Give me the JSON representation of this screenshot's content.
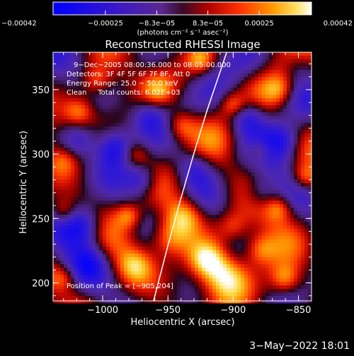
{
  "chart_data": {
    "type": "heatmap",
    "title": "Reconstructed RHESSI Image",
    "xlabel": "Heliocentric X (arcsec)",
    "ylabel": "Heliocentric Y (arcsec)",
    "xlim": [
      -1038,
      -840
    ],
    "ylim": [
      186,
      379
    ],
    "x_ticks": [
      {
        "value": -1000,
        "label": "−1000"
      },
      {
        "value": -950,
        "label": "−950"
      },
      {
        "value": -900,
        "label": "−900"
      },
      {
        "value": -850,
        "label": "−850"
      }
    ],
    "y_ticks": [
      {
        "value": 200,
        "label": "200"
      },
      {
        "value": 250,
        "label": "250"
      },
      {
        "value": 300,
        "label": "300"
      },
      {
        "value": 350,
        "label": "350"
      }
    ],
    "colorbar": {
      "range": [
        -0.00042,
        0.00042
      ],
      "ticks": [
        {
          "value": -0.00042,
          "label": "−0.00042"
        },
        {
          "value": -0.00025,
          "label": "−0.00025"
        },
        {
          "value": -8.3e-05,
          "label": "−8.3e−05"
        },
        {
          "value": 8.3e-05,
          "label": "8.3e−05"
        },
        {
          "value": 0.00025,
          "label": "0.00025"
        },
        {
          "value": 0.00042,
          "label": "0.00042"
        }
      ],
      "unit_label": "(photons cm⁻² s⁻¹ asec⁻²)"
    },
    "annotations": {
      "time_range": "9−Dec−2005 08:00:36.000 to 08:05:00.000",
      "detectors": "Detectors: 3F 4F 5F 6F 7F 8F, Att 0",
      "energy_range": "Energy Range: 25.0 − 50.0 keV",
      "method_counts": "Clean     Total counts: 6.02E+03",
      "peak_position": "Position of Peak = [−905,204]"
    },
    "peak": {
      "x": -905,
      "y": 204
    },
    "limb_curve": [
      {
        "x": -961,
        "y": 186
      },
      {
        "x": -950,
        "y": 229
      },
      {
        "x": -940,
        "y": 266
      },
      {
        "x": -930,
        "y": 301
      },
      {
        "x": -920,
        "y": 334
      },
      {
        "x": -910,
        "y": 364
      },
      {
        "x": -905,
        "y": 379
      }
    ],
    "hotspots": [
      {
        "x": -905,
        "y": 204,
        "amp": 1.0,
        "w": 13
      },
      {
        "x": -920,
        "y": 218,
        "amp": 0.8,
        "w": 10
      },
      {
        "x": -950,
        "y": 235,
        "amp": 0.75,
        "w": 11
      },
      {
        "x": -938,
        "y": 252,
        "amp": 0.7,
        "w": 10
      },
      {
        "x": -880,
        "y": 226,
        "amp": 0.6,
        "w": 9
      },
      {
        "x": -860,
        "y": 203,
        "amp": 0.55,
        "w": 8
      },
      {
        "x": -900,
        "y": 243,
        "amp": 0.55,
        "w": 9
      },
      {
        "x": -975,
        "y": 213,
        "amp": 0.5,
        "w": 9
      },
      {
        "x": -980,
        "y": 252,
        "amp": 0.55,
        "w": 7
      },
      {
        "x": -1030,
        "y": 255,
        "amp": 0.5,
        "w": 7
      },
      {
        "x": -1018,
        "y": 333,
        "amp": 0.55,
        "w": 8
      },
      {
        "x": -1005,
        "y": 357,
        "amp": 0.5,
        "w": 8
      },
      {
        "x": -975,
        "y": 300,
        "amp": 0.55,
        "w": 8
      },
      {
        "x": -958,
        "y": 350,
        "amp": 0.45,
        "w": 8
      },
      {
        "x": -940,
        "y": 322,
        "amp": 0.55,
        "w": 8
      },
      {
        "x": -900,
        "y": 338,
        "amp": 0.55,
        "w": 7
      },
      {
        "x": -880,
        "y": 303,
        "amp": 0.45,
        "w": 7
      },
      {
        "x": -865,
        "y": 350,
        "amp": 0.45,
        "w": 8
      },
      {
        "x": -845,
        "y": 282,
        "amp": 0.55,
        "w": 7
      },
      {
        "x": -865,
        "y": 258,
        "amp": 0.45,
        "w": 7
      },
      {
        "x": -925,
        "y": 373,
        "amp": 0.5,
        "w": 7
      },
      {
        "x": -1030,
        "y": 295,
        "amp": 0.35,
        "w": 8
      },
      {
        "x": -1030,
        "y": 204,
        "amp": 0.4,
        "w": 7
      }
    ],
    "coldspots": [
      {
        "x": -1015,
        "y": 245,
        "amp": 0.8,
        "w": 11
      },
      {
        "x": -990,
        "y": 305,
        "amp": 0.7,
        "w": 10
      },
      {
        "x": -890,
        "y": 330,
        "amp": 0.7,
        "w": 10
      },
      {
        "x": -860,
        "y": 310,
        "amp": 0.6,
        "w": 10
      },
      {
        "x": -970,
        "y": 280,
        "amp": 0.6,
        "w": 9
      },
      {
        "x": -1020,
        "y": 310,
        "amp": 0.6,
        "w": 10
      },
      {
        "x": -930,
        "y": 290,
        "amp": 0.5,
        "w": 10
      },
      {
        "x": -880,
        "y": 270,
        "amp": 0.5,
        "w": 9
      },
      {
        "x": -965,
        "y": 330,
        "amp": 0.45,
        "w": 9
      },
      {
        "x": -1010,
        "y": 215,
        "amp": 0.45,
        "w": 10
      },
      {
        "x": -850,
        "y": 370,
        "amp": 0.4,
        "w": 9
      }
    ],
    "colors": {
      "axis": "#ffffff",
      "background": "#000000",
      "limb_line": "#ffffff"
    }
  },
  "footer": {
    "timestamp": "3−May−2022 18:01"
  }
}
